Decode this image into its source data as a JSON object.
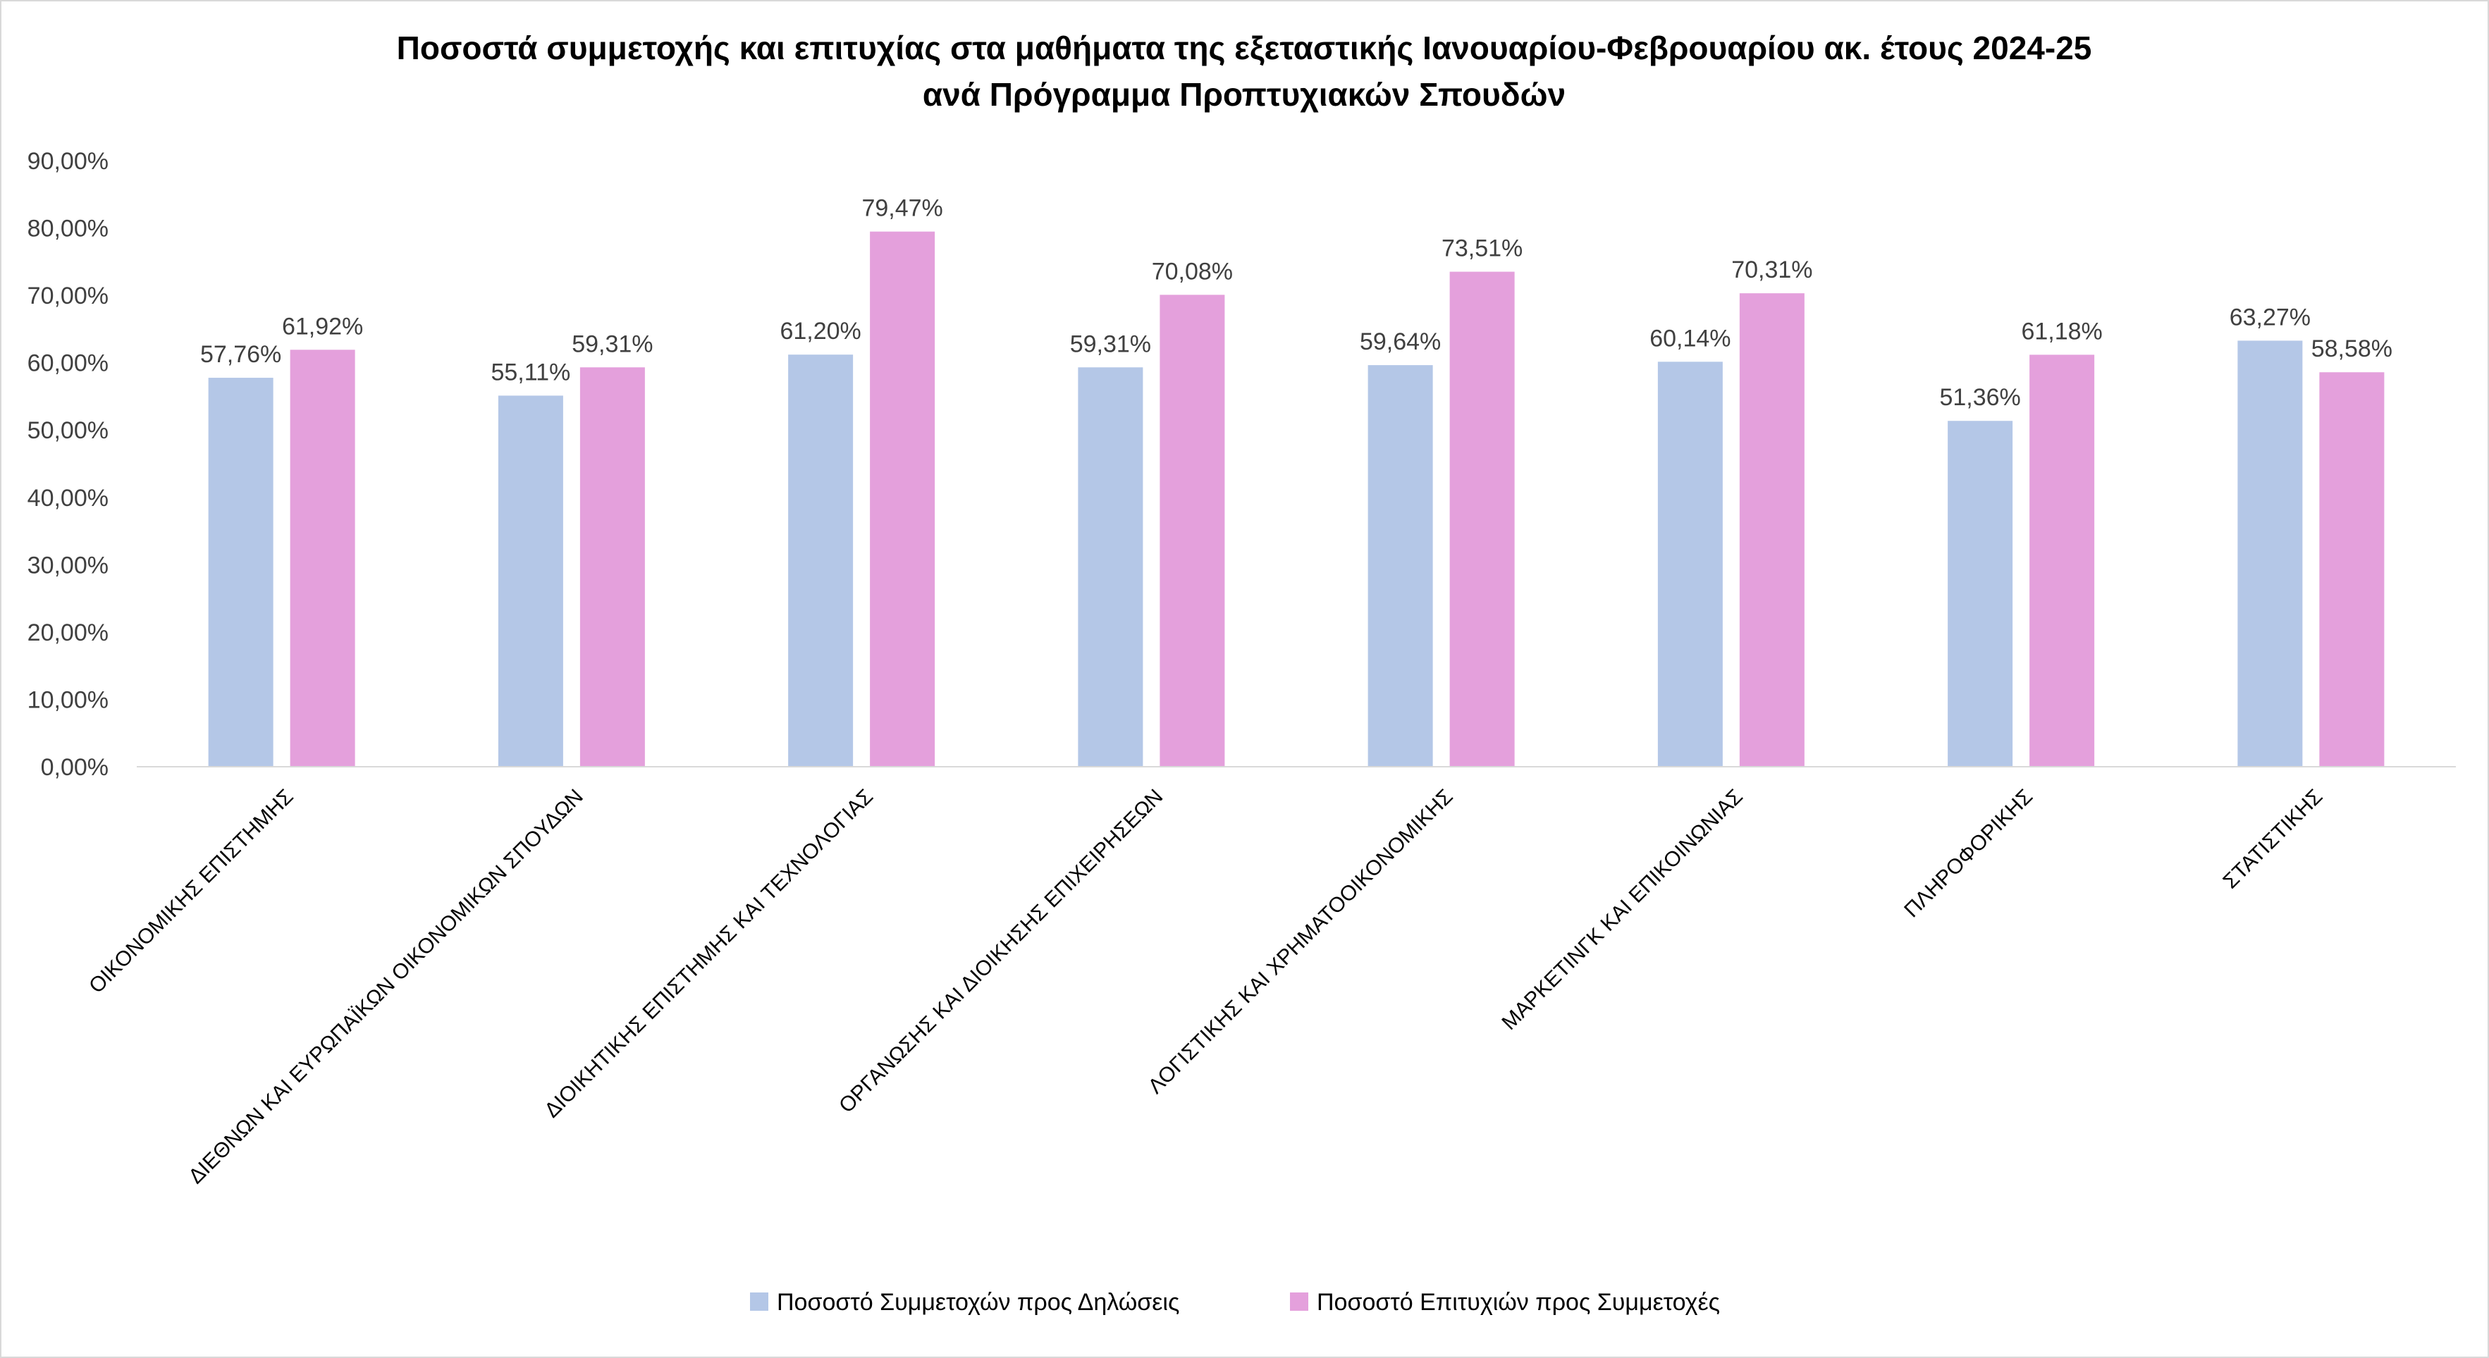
{
  "chart_data": {
    "type": "bar",
    "title": "Ποσοστά συμμετοχής και επιτυχίας στα μαθήματα της εξεταστικής Ιανουαρίου-Φεβρουαρίου ακ. έτους 2024-25",
    "subtitle": "ανά Πρόγραμμα Προπτυχιακών Σπουδών",
    "xlabel": "",
    "ylabel": "",
    "ylim": [
      0,
      90
    ],
    "yticks": [
      0,
      10,
      20,
      30,
      40,
      50,
      60,
      70,
      80,
      90
    ],
    "ytick_labels": [
      "0,00%",
      "10,00%",
      "20,00%",
      "30,00%",
      "40,00%",
      "50,00%",
      "60,00%",
      "70,00%",
      "80,00%",
      "90,00%"
    ],
    "grid": false,
    "legend_position": "bottom",
    "categories": [
      "ΟΙΚΟΝΟΜΙΚΗΣ ΕΠΙΣΤΗΜΗΣ",
      "ΔΙΕΘΝΩΝ ΚΑΙ ΕΥΡΩΠΑΪΚΩΝ ΟΙΚΟΝΟΜΙΚΩΝ ΣΠΟΥΔΩΝ",
      "ΔΙΟΙΚΗΤΙΚΗΣ ΕΠΙΣΤΗΜΗΣ ΚΑΙ ΤΕΧΝΟΛΟΓΙΑΣ",
      "ΟΡΓΑΝΩΣΗΣ ΚΑΙ ΔΙΟΙΚΗΣΗΣ ΕΠΙΧΕΙΡΗΣΕΩΝ",
      "ΛΟΓΙΣΤΙΚΗΣ ΚΑΙ ΧΡΗΜΑΤΟΟΙΚΟΝΟΜΙΚΗΣ",
      "ΜΑΡΚΕΤΙΝΓΚ ΚΑΙ ΕΠΙΚΟΙΝΩΝΙΑΣ",
      "ΠΛΗΡΟΦΟΡΙΚΗΣ",
      "ΣΤΑΤΙΣΤΙΚΗΣ"
    ],
    "series": [
      {
        "name": "Ποσοστό Συμμετοχών προς Δηλώσεις",
        "color": "#b4c7e7",
        "values": [
          57.76,
          55.11,
          61.2,
          59.31,
          59.64,
          60.14,
          51.36,
          63.27
        ],
        "labels": [
          "57,76%",
          "55,11%",
          "61,20%",
          "59,31%",
          "59,64%",
          "60,14%",
          "51,36%",
          "63,27%"
        ]
      },
      {
        "name": "Ποσοστό Επιτυχιών προς Συμμετοχές",
        "color": "#e4a0dc",
        "values": [
          61.92,
          59.31,
          79.47,
          70.08,
          73.51,
          70.31,
          61.18,
          58.58
        ],
        "labels": [
          "61,92%",
          "59,31%",
          "79,47%",
          "70,08%",
          "73,51%",
          "70,31%",
          "61,18%",
          "58,58%"
        ]
      }
    ]
  }
}
